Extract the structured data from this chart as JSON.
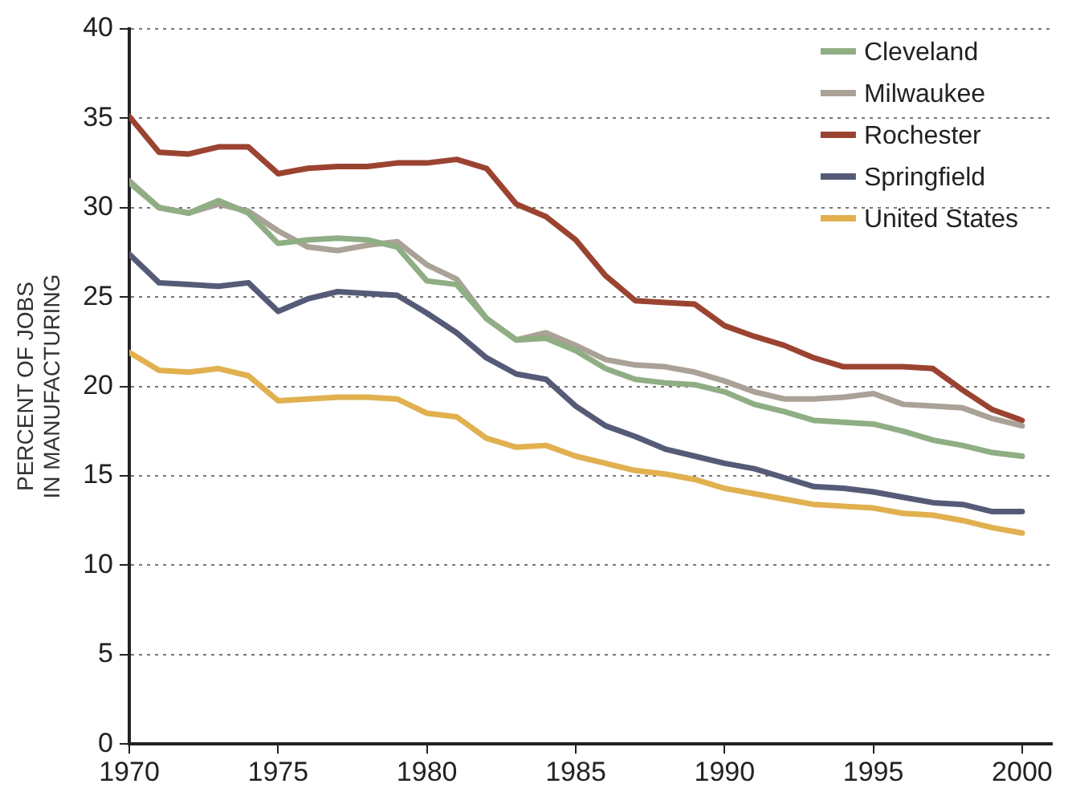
{
  "chart_data": {
    "type": "line",
    "ylabel": "PERCENT OF JOBS\nIN MANUFACTURING",
    "x": [
      1970,
      1971,
      1972,
      1973,
      1974,
      1975,
      1976,
      1977,
      1978,
      1979,
      1980,
      1981,
      1982,
      1983,
      1984,
      1985,
      1986,
      1987,
      1988,
      1989,
      1990,
      1991,
      1992,
      1993,
      1994,
      1995,
      1996,
      1997,
      1998,
      1999,
      2000
    ],
    "series": [
      {
        "name": "Cleveland",
        "color": "#8fae84",
        "values": [
          31.4,
          30.0,
          29.7,
          30.4,
          29.7,
          28.0,
          28.2,
          28.3,
          28.2,
          27.8,
          25.9,
          25.7,
          23.8,
          22.6,
          22.7,
          22.0,
          21.0,
          20.4,
          20.2,
          20.1,
          19.7,
          19.0,
          18.6,
          18.1,
          18.0,
          17.9,
          17.5,
          17.0,
          16.7,
          16.3,
          16.1
        ]
      },
      {
        "name": "Milwaukee",
        "color": "#aaa197",
        "values": [
          31.5,
          30.0,
          29.7,
          30.2,
          29.8,
          28.7,
          27.8,
          27.6,
          27.9,
          28.1,
          26.8,
          26.0,
          23.8,
          22.6,
          23.0,
          22.3,
          21.5,
          21.2,
          21.1,
          20.8,
          20.3,
          19.7,
          19.3,
          19.3,
          19.4,
          19.6,
          19.0,
          18.9,
          18.8,
          18.2,
          17.8
        ]
      },
      {
        "name": "Rochester",
        "color": "#9b4331",
        "values": [
          35.1,
          33.1,
          33.0,
          33.4,
          33.4,
          31.9,
          32.2,
          32.3,
          32.3,
          32.5,
          32.5,
          32.7,
          32.2,
          30.2,
          29.5,
          28.2,
          26.2,
          24.8,
          24.7,
          24.6,
          23.4,
          22.8,
          22.3,
          21.6,
          21.1,
          21.1,
          21.1,
          21.0,
          19.8,
          18.7,
          18.1
        ]
      },
      {
        "name": "Springfield",
        "color": "#555b77",
        "values": [
          27.4,
          25.8,
          25.7,
          25.6,
          25.8,
          24.2,
          24.9,
          25.3,
          25.2,
          25.1,
          24.1,
          23.0,
          21.6,
          20.7,
          20.4,
          18.9,
          17.8,
          17.2,
          16.5,
          16.1,
          15.7,
          15.4,
          14.9,
          14.4,
          14.3,
          14.1,
          13.8,
          13.5,
          13.4,
          13.0,
          13.0
        ]
      },
      {
        "name": "United States",
        "color": "#e1b04f",
        "values": [
          21.9,
          20.9,
          20.8,
          21.0,
          20.6,
          19.2,
          19.3,
          19.4,
          19.4,
          19.3,
          18.5,
          18.3,
          17.1,
          16.6,
          16.7,
          16.1,
          15.7,
          15.3,
          15.1,
          14.8,
          14.3,
          14.0,
          13.7,
          13.4,
          13.3,
          13.2,
          12.9,
          12.8,
          12.5,
          12.1,
          11.8
        ]
      }
    ],
    "xlim": [
      1970,
      2001
    ],
    "xticks": [
      1970,
      1975,
      1980,
      1985,
      1990,
      1995,
      2000
    ],
    "ylim": [
      0,
      40
    ],
    "yticks": [
      0,
      5,
      10,
      15,
      20,
      25,
      30,
      35,
      40
    ],
    "grid": "y",
    "legend": "top right",
    "marker": "none",
    "line_style": "solid"
  }
}
